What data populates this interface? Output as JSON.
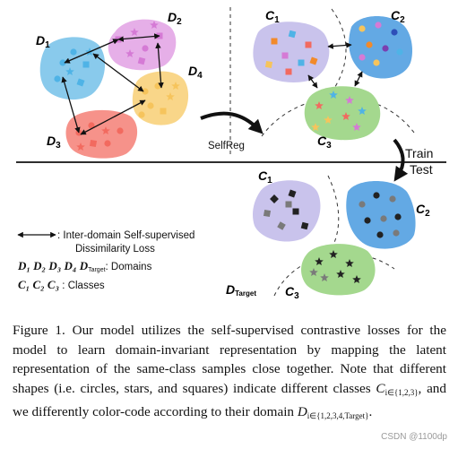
{
  "figure": {
    "domains": [
      {
        "name": "D",
        "index": "1",
        "color": "#4fb3e6"
      },
      {
        "name": "D",
        "index": "2",
        "color": "#d57ad5"
      },
      {
        "name": "D",
        "index": "3",
        "color": "#f26a5f"
      },
      {
        "name": "D",
        "index": "4",
        "color": "#f6c45c"
      }
    ],
    "classes": [
      {
        "name": "C",
        "index": "1"
      },
      {
        "name": "C",
        "index": "2"
      },
      {
        "name": "C",
        "index": "3"
      }
    ],
    "target_label": {
      "name": "D",
      "sub": "Target"
    },
    "arrow_selfreg": "SelfReg",
    "train_label": "Train",
    "test_label": "Test",
    "legend": {
      "loss_line1": ": Inter-domain Self-supervised",
      "loss_line2": "Dissimilarity Loss",
      "domains_symbols": "D₁ D₂ D₃ D₄ ",
      "domains_target_symbol": "D",
      "domains_target_sub": "Target",
      "domains_text": ": Domains",
      "classes_symbols": "C₁ C₂ C₃",
      "classes_text": " : Classes"
    },
    "colors": {
      "c1_blob": "#c9c3ec",
      "c2_blob": "#63a9e4",
      "c3_blob": "#a4d88e",
      "test_marker": "#222222",
      "test_marker_gray": "#7a7a7a"
    }
  },
  "caption": {
    "part1": "Figure 1. Our model utilizes the self-supervised contrastive losses for the model to learn domain-invariant representation by mapping the latent representation of the same-class samples close together. Note that different shapes (i.e. circles, stars, and squares) indicate different classes ",
    "c_symbol": "C",
    "c_sub": "i∈{1,2,3}",
    "part2": ", and we differently color-code according to their domain ",
    "d_symbol": "D",
    "d_sub": "i∈{1,2,3,4,Target}",
    "part3": "."
  },
  "watermark": "CSDN @1100dp"
}
